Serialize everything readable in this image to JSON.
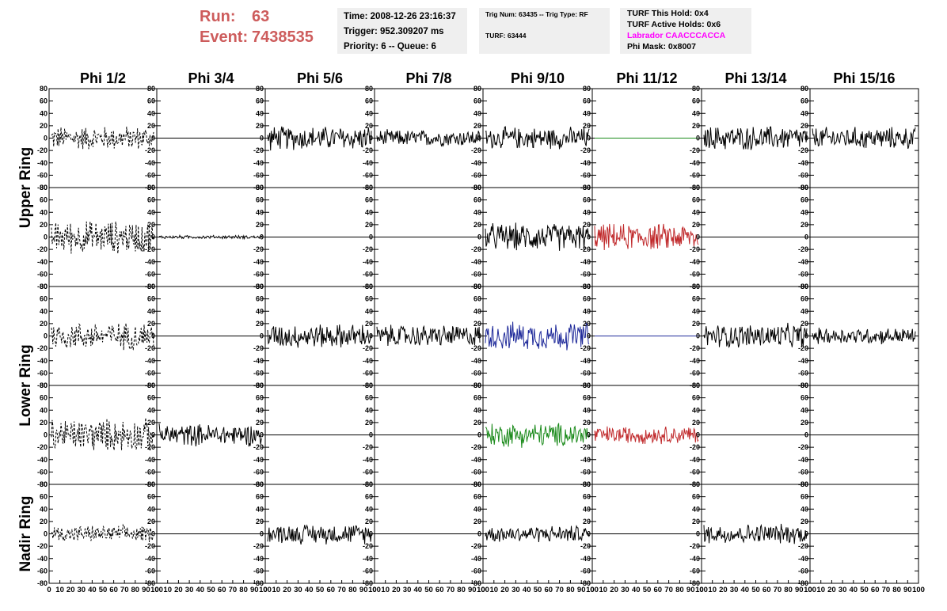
{
  "header": {
    "run_label": "Run:",
    "run_value": "63",
    "event_label": "Event:",
    "event_value": "7438535"
  },
  "info_panel": {
    "time": "Time: 2008-12-26 23:16:37",
    "trigger": "Trigger: 952.309207 ms",
    "priority": "Priority: 6 -- Queue: 6",
    "trig_num": "Trig Num: 63435 -- Trig Type: RF",
    "turf": "TURF: 63444",
    "turf_this_hold": "TURF This Hold: 0x4",
    "turf_active_holds": "TURF Active Holds: 0x6",
    "labrador": "Labrador CAACCCACCA",
    "phi_mask": "Phi Mask: 0x8007"
  },
  "colors": {
    "header_text": "#cd5c5c",
    "info_bg": "#efefef",
    "labrador_text": "#ff00ff",
    "trace_black": "#000000",
    "trace_red": "#c0292b",
    "trace_blue": "#1f2a9a",
    "trace_green": "#1a8a1a"
  },
  "chart_data": {
    "type": "line",
    "column_labels": [
      "Phi 1/2",
      "Phi 3/4",
      "Phi 5/6",
      "Phi 7/8",
      "Phi 9/10",
      "Phi 11/12",
      "Phi 13/14",
      "Phi 15/16"
    ],
    "ring_labels": [
      "Upper Ring",
      "Lower Ring",
      "Nadir Ring"
    ],
    "ylim": [
      -80,
      80
    ],
    "yticks": [
      80,
      60,
      40,
      20,
      0,
      -20,
      -40,
      -60,
      -80
    ],
    "xlim": [
      0,
      100
    ],
    "xtick_labels": [
      "0",
      "10",
      "20",
      "30",
      "40",
      "50",
      "60",
      "70",
      "80",
      "90",
      "100"
    ],
    "grid": false,
    "panels": [
      [
        {
          "style": "dashed",
          "color": "black",
          "amplitude": 22
        },
        {
          "style": "flat",
          "color": "black",
          "amplitude": 0
        },
        {
          "style": "solid",
          "color": "black",
          "amplitude": 22
        },
        {
          "style": "solid",
          "color": "black",
          "amplitude": 15
        },
        {
          "style": "solid",
          "color": "black",
          "amplitude": 20
        },
        {
          "style": "flat",
          "color": "green",
          "amplitude": 0
        },
        {
          "style": "solid",
          "color": "black",
          "amplitude": 22
        },
        {
          "style": "solid",
          "color": "black",
          "amplitude": 20
        }
      ],
      [
        {
          "style": "dashed",
          "color": "black",
          "amplitude": 30
        },
        {
          "style": "solid",
          "color": "black",
          "amplitude": 3
        },
        {
          "style": "flat",
          "color": "black",
          "amplitude": 0
        },
        {
          "style": "flat",
          "color": "black",
          "amplitude": 0
        },
        {
          "style": "solid",
          "color": "black",
          "amplitude": 25
        },
        {
          "style": "solid",
          "color": "red",
          "amplitude": 24
        },
        {
          "style": "flat",
          "color": "black",
          "amplitude": 0
        },
        {
          "style": "flat",
          "color": "black",
          "amplitude": 0
        }
      ],
      [
        {
          "style": "dashed",
          "color": "black",
          "amplitude": 25
        },
        {
          "style": "flat",
          "color": "black",
          "amplitude": 0
        },
        {
          "style": "solid",
          "color": "black",
          "amplitude": 22
        },
        {
          "style": "solid",
          "color": "black",
          "amplitude": 20
        },
        {
          "style": "solid",
          "color": "blue",
          "amplitude": 25
        },
        {
          "style": "flat",
          "color": "blue",
          "amplitude": 0
        },
        {
          "style": "solid",
          "color": "black",
          "amplitude": 22
        },
        {
          "style": "solid",
          "color": "black",
          "amplitude": 15
        }
      ],
      [
        {
          "style": "dashed",
          "color": "black",
          "amplitude": 30
        },
        {
          "style": "solid",
          "color": "black",
          "amplitude": 20
        },
        {
          "style": "flat",
          "color": "black",
          "amplitude": 0
        },
        {
          "style": "flat",
          "color": "black",
          "amplitude": 0
        },
        {
          "style": "solid",
          "color": "green",
          "amplitude": 22
        },
        {
          "style": "solid",
          "color": "red",
          "amplitude": 16
        },
        {
          "style": "flat",
          "color": "black",
          "amplitude": 0
        },
        {
          "style": "flat",
          "color": "black",
          "amplitude": 0
        }
      ],
      [
        {
          "style": "dashed",
          "color": "black",
          "amplitude": 15
        },
        {
          "style": "flat",
          "color": "black",
          "amplitude": 0
        },
        {
          "style": "solid",
          "color": "black",
          "amplitude": 18
        },
        {
          "style": "flat",
          "color": "black",
          "amplitude": 0
        },
        {
          "style": "solid",
          "color": "black",
          "amplitude": 15
        },
        {
          "style": "flat",
          "color": "black",
          "amplitude": 0
        },
        {
          "style": "solid",
          "color": "black",
          "amplitude": 18
        },
        {
          "style": "flat",
          "color": "black",
          "amplitude": 0
        }
      ]
    ]
  }
}
